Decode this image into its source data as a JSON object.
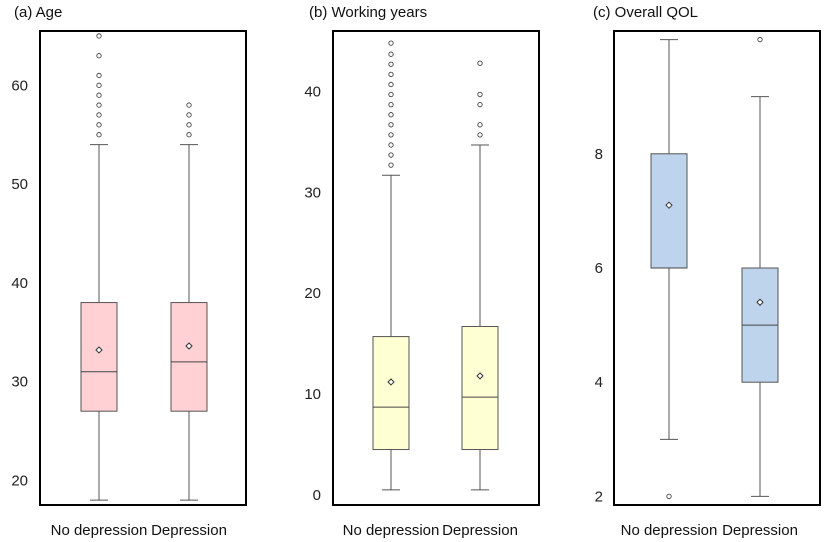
{
  "chart_data": [
    {
      "type": "box",
      "title": "(a) Age",
      "color": "#ffd0d4",
      "ylim": [
        17.5,
        65.5
      ],
      "yticks": [
        20,
        30,
        40,
        50,
        60
      ],
      "categories": [
        "No depression",
        "Depression"
      ],
      "boxes": [
        {
          "name": "No depression",
          "whisker_low": 18,
          "q1": 27,
          "median": 31,
          "q3": 38,
          "whisker_high": 54,
          "mean": 33.2,
          "outliers": [
            55,
            56,
            57,
            58,
            59,
            60,
            61,
            63,
            65
          ]
        },
        {
          "name": "Depression",
          "whisker_low": 18,
          "q1": 27,
          "median": 32,
          "q3": 38,
          "whisker_high": 54,
          "mean": 33.6,
          "outliers": [
            55,
            56,
            57,
            58
          ]
        }
      ]
    },
    {
      "type": "box",
      "title": "(b) Working years",
      "color": "#ffffd4",
      "ylim": [
        -1,
        46
      ],
      "yticks": [
        0,
        10,
        20,
        30,
        40
      ],
      "categories": [
        "No depression",
        "Depression"
      ],
      "boxes": [
        {
          "name": "No depression",
          "whisker_low": 0.5,
          "q1": 4.5,
          "median": 8.7,
          "q3": 15.7,
          "whisker_high": 31.7,
          "mean": 11.2,
          "outliers": [
            32.7,
            33.7,
            34.7,
            35.7,
            36.7,
            37.7,
            38.7,
            39.7,
            40.7,
            41.7,
            42.7,
            43.7,
            44.8
          ]
        },
        {
          "name": "Depression",
          "whisker_low": 0.5,
          "q1": 4.5,
          "median": 9.7,
          "q3": 16.7,
          "whisker_high": 34.7,
          "mean": 11.8,
          "outliers": [
            35.7,
            36.7,
            38.7,
            39.7,
            42.8
          ]
        }
      ]
    },
    {
      "type": "box",
      "title": "(c) Overall QOL",
      "color": "#bed3ec",
      "ylim": [
        1.85,
        10.15
      ],
      "yticks": [
        2,
        4,
        6,
        8
      ],
      "categories": [
        "No depression",
        "Depression"
      ],
      "boxes": [
        {
          "name": "No depression",
          "whisker_low": 3,
          "q1": 6,
          "median": 6,
          "q3": 8,
          "whisker_high": 10,
          "mean": 7.1,
          "outliers": [
            2
          ]
        },
        {
          "name": "Depression",
          "whisker_low": 2,
          "q1": 4,
          "median": 5,
          "q3": 6,
          "whisker_high": 9,
          "mean": 5.4,
          "outliers": [
            10
          ]
        }
      ]
    }
  ]
}
